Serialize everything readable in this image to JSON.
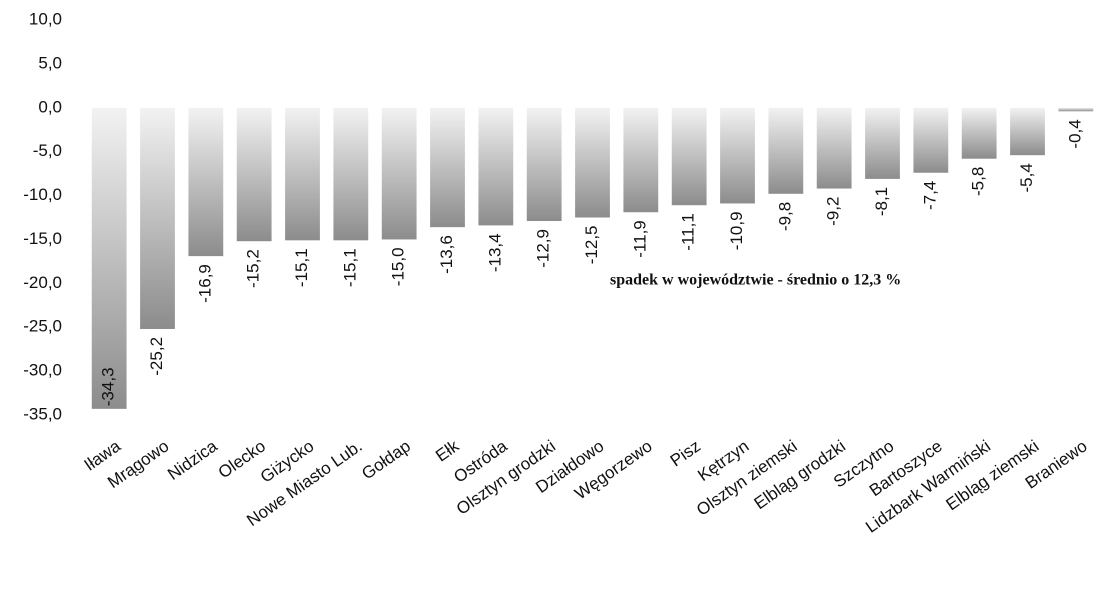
{
  "chart_data": {
    "type": "bar",
    "annotation": "spadek w województwie - średnio o 12,3 %",
    "categories": [
      "Iława",
      "Mrągowo",
      "Nidzica",
      "Olecko",
      "Giżycko",
      "Nowe Miasto Lub.",
      "Gołdap",
      "Ełk",
      "Ostróda",
      "Olsztyn grodzki",
      "Działdowo",
      "Węgorzewo",
      "Pisz",
      "Kętrzyn",
      "Olsztyn ziemski",
      "Elbląg grodzki",
      "Szczytno",
      "Bartoszyce",
      "Lidzbark Warmiński",
      "Elbląg ziemski",
      "Braniewo"
    ],
    "values": [
      -34.3,
      -25.2,
      -16.9,
      -15.2,
      -15.1,
      -15.1,
      -15.0,
      -13.6,
      -13.4,
      -12.9,
      -12.5,
      -11.9,
      -11.1,
      -10.9,
      -9.8,
      -9.2,
      -8.1,
      -7.4,
      -5.8,
      -5.4,
      -0.4
    ],
    "value_labels": [
      "-34,3",
      "-25,2",
      "-16,9",
      "-15,2",
      "-15,1",
      "-15,1",
      "-15,0",
      "-13,6",
      "-13,4",
      "-12,9",
      "-12,5",
      "-11,9",
      "-11,1",
      "-10,9",
      "-9,8",
      "-9,2",
      "-8,1",
      "-7,4",
      "-5,8",
      "-5,4",
      "-0,4"
    ],
    "color": "#8c8c8c",
    "ylim": [
      -35,
      10
    ],
    "yticks": [
      {
        "value": -35,
        "label": "-35,0"
      },
      {
        "value": -30,
        "label": "-30,0"
      },
      {
        "value": -25,
        "label": "-25,0"
      },
      {
        "value": -20,
        "label": "-20,0"
      },
      {
        "value": -15,
        "label": "-15,0"
      },
      {
        "value": -10,
        "label": "-10,0"
      },
      {
        "value": -5,
        "label": "-5,0"
      },
      {
        "value": 0,
        "label": "0,0"
      },
      {
        "value": 5,
        "label": "5,0"
      },
      {
        "value": 10,
        "label": "10,0"
      }
    ],
    "grid": false
  }
}
